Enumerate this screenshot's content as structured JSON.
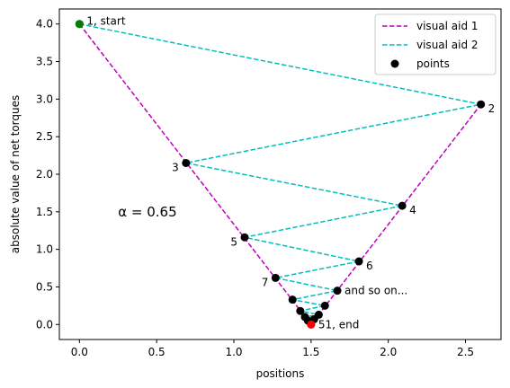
{
  "chart_data": {
    "type": "scatter",
    "title": "",
    "xlabel": "positions",
    "ylabel": "absolute value of net torques",
    "xlim": [
      -0.13,
      2.73
    ],
    "ylim": [
      -0.2,
      4.2
    ],
    "x_ticks": [
      0.0,
      0.5,
      1.0,
      1.5,
      2.0,
      2.5
    ],
    "x_tick_labels": [
      "0.0",
      "0.5",
      "1.0",
      "1.5",
      "2.0",
      "2.5"
    ],
    "y_ticks": [
      0.0,
      0.5,
      1.0,
      1.5,
      2.0,
      2.5,
      3.0,
      3.5,
      4.0
    ],
    "y_tick_labels": [
      "0.0",
      "0.5",
      "1.0",
      "1.5",
      "2.0",
      "2.5",
      "3.0",
      "3.5",
      "4.0"
    ],
    "series": [
      {
        "name": "visual aid 1",
        "style": "dashed",
        "color": "#bf00bf",
        "x": [
          0.0,
          1.5,
          2.6
        ],
        "y": [
          4.0,
          0.0,
          2.93
        ]
      },
      {
        "name": "visual aid 2",
        "style": "dashed",
        "color": "#00bfbf",
        "x": [
          0.0,
          2.6,
          0.69,
          2.09,
          1.07,
          1.81,
          1.27,
          1.67,
          1.38,
          1.59,
          1.43,
          1.55,
          1.46,
          1.52,
          1.48,
          1.5
        ],
        "y": [
          4.0,
          2.93,
          2.15,
          1.58,
          1.16,
          0.84,
          0.62,
          0.45,
          0.33,
          0.25,
          0.18,
          0.13,
          0.1,
          0.07,
          0.05,
          0.0
        ]
      },
      {
        "name": "points",
        "style": "scatter",
        "color": "#000000",
        "x": [
          0.0,
          2.6,
          0.69,
          2.09,
          1.07,
          1.81,
          1.27,
          1.67,
          1.38,
          1.59,
          1.43,
          1.55,
          1.46,
          1.52,
          1.48,
          1.5
        ],
        "y": [
          4.0,
          2.93,
          2.15,
          1.58,
          1.16,
          0.84,
          0.62,
          0.45,
          0.33,
          0.25,
          0.18,
          0.13,
          0.1,
          0.07,
          0.05,
          0.0
        ]
      }
    ],
    "start_point": {
      "x": 0.0,
      "y": 4.0,
      "color": "#008000"
    },
    "end_point": {
      "x": 1.5,
      "y": 0.0,
      "color": "#ff0000"
    },
    "point_labels": [
      {
        "text": "1, start",
        "x": 0.0,
        "y": 4.0,
        "side": "right"
      },
      {
        "text": "2",
        "x": 2.6,
        "y": 2.93,
        "side": "right"
      },
      {
        "text": "3",
        "x": 0.69,
        "y": 2.15,
        "side": "left"
      },
      {
        "text": "4",
        "x": 2.09,
        "y": 1.58,
        "side": "right"
      },
      {
        "text": "5",
        "x": 1.07,
        "y": 1.16,
        "side": "left"
      },
      {
        "text": "6",
        "x": 1.81,
        "y": 0.84,
        "side": "right"
      },
      {
        "text": "7",
        "x": 1.27,
        "y": 0.62,
        "side": "left"
      },
      {
        "text": "and so on...",
        "x": 1.67,
        "y": 0.45,
        "side": "right"
      },
      {
        "text": "51, end",
        "x": 1.5,
        "y": 0.0,
        "side": "right"
      }
    ],
    "annotation": {
      "text": "α = 0.65",
      "x": 0.25,
      "y": 1.5
    },
    "legend": {
      "position": "upper right",
      "entries": [
        "visual aid 1",
        "visual aid 2",
        "points"
      ]
    },
    "grid": false
  }
}
